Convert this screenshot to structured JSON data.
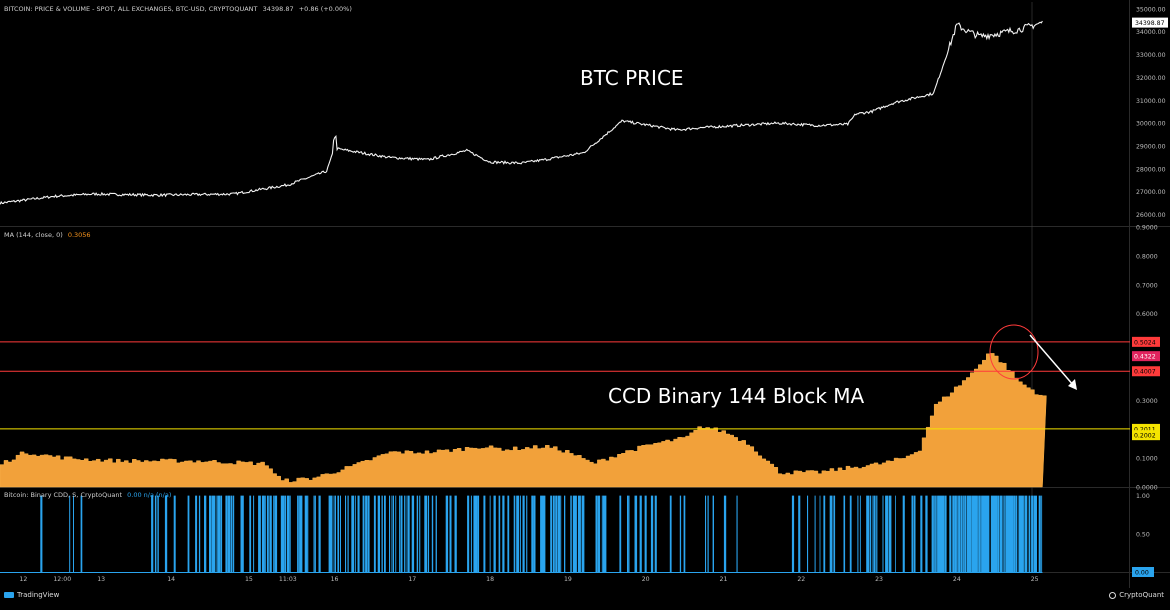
{
  "chart_data": [
    {
      "type": "line",
      "pane": "price",
      "header": "BITCOIN: PRICE & VOLUME - SPOT, ALL EXCHANGES, BTC-USD, CRYPTOQUANT",
      "header_value": "34398.87",
      "header_change": "+0.86 (+0.00%)",
      "annotation": "BTC PRICE",
      "last_value_label": "34398.87",
      "y_ticks": [
        "35000.00",
        "34000.00",
        "33000.00",
        "32000.00",
        "31000.00",
        "30000.00",
        "29000.00",
        "28000.00",
        "27000.00",
        "26000.00"
      ],
      "ylim": [
        25500,
        35300
      ],
      "x": [
        0,
        0.7,
        1.2,
        2.0,
        3.0,
        3.7,
        4.2,
        4.3,
        5.0,
        5.5,
        6.0,
        6.3,
        6.7,
        7.0,
        7.5,
        8.0,
        8.7,
        9.0,
        10.0,
        10.5,
        10.9,
        11.0,
        11.2,
        11.5,
        12.0,
        12.3,
        12.45,
        12.6,
        12.8,
        13.1,
        13.4
      ],
      "values": [
        26500,
        26800,
        26900,
        26850,
        26900,
        27300,
        27900,
        28900,
        28500,
        28400,
        28800,
        28300,
        28250,
        28400,
        28700,
        30100,
        29700,
        29800,
        30000,
        29900,
        29950,
        30400,
        30500,
        30900,
        31300,
        34300,
        34000,
        33800,
        33900,
        34100,
        34400
      ]
    },
    {
      "type": "area",
      "pane": "ma",
      "header": "MA (144, close, 0)",
      "header_value": "0.3056",
      "annotation": "CCD Binary 144 Block MA",
      "y_ticks": [
        "0.9000",
        "0.8000",
        "0.7000",
        "0.6000",
        "0.5000",
        "0.4000",
        "0.3000",
        "0.2000",
        "0.1000",
        "0.0000"
      ],
      "ylim": [
        0,
        0.9
      ],
      "horizontal_lines": [
        {
          "value": 0.5024,
          "label": "0.5024",
          "color": "#ff3b3b"
        },
        {
          "value": 0.4007,
          "label": "0.4007",
          "color": "#ff3b3b"
        },
        {
          "value": 0.2011,
          "label": "0.2011",
          "color": "#f5e400"
        }
      ],
      "extra_labels": [
        {
          "value": 0.4322,
          "label": "0.4322",
          "color": "#e0245e"
        },
        {
          "value": 0.2002,
          "label": "0.2002",
          "color": "#f5e400"
        }
      ],
      "x": [
        0,
        0.3,
        0.8,
        1.5,
        2.5,
        3.4,
        3.6,
        4.0,
        4.5,
        5.0,
        5.5,
        5.9,
        6.1,
        6.5,
        7.0,
        7.3,
        7.6,
        8.0,
        8.4,
        8.8,
        9.0,
        9.3,
        9.6,
        10.0,
        10.5,
        11.0,
        11.3,
        11.6,
        11.8,
        12.0,
        12.3,
        12.5,
        12.7,
        12.9,
        13.1,
        13.4
      ],
      "values": [
        0.08,
        0.12,
        0.1,
        0.09,
        0.09,
        0.08,
        0.02,
        0.03,
        0.07,
        0.12,
        0.12,
        0.13,
        0.14,
        0.13,
        0.14,
        0.12,
        0.08,
        0.12,
        0.15,
        0.17,
        0.21,
        0.19,
        0.15,
        0.05,
        0.05,
        0.07,
        0.08,
        0.1,
        0.13,
        0.28,
        0.35,
        0.4,
        0.47,
        0.42,
        0.36,
        0.31
      ]
    },
    {
      "type": "bar",
      "pane": "binary",
      "header": "Bitcoin: Binary CDD, S, CryptoQuant",
      "header_value": "0.00 n/a (n/a)",
      "y_ticks": [
        "1.00",
        "0.50",
        "0.00"
      ],
      "last_value_label": "0.00",
      "ylim": [
        0,
        1.1
      ],
      "density": [
        0.02,
        0.2,
        0.05,
        0.15,
        0.05,
        0.1,
        0.05,
        0.1,
        0.05,
        0.35,
        0.45,
        0.5,
        0.45,
        0.4,
        0.5,
        0.45,
        0.4,
        0.5,
        0.5,
        0.45,
        0.4,
        0.5,
        0.45,
        0.55,
        0.5,
        0.4,
        0.35,
        0.2,
        0.3,
        0.25,
        0.2,
        0.15,
        0.1,
        0.05,
        0.1,
        0.2,
        0.15,
        0.2,
        0.3,
        0.4,
        0.5,
        0.8,
        0.85,
        0.8,
        0.7,
        0.6
      ]
    }
  ],
  "x_axis": {
    "ticks": [
      {
        "label": "12",
        "x": 0.3
      },
      {
        "label": "12:00",
        "x": 0.8
      },
      {
        "label": "13",
        "x": 1.3
      },
      {
        "label": "14",
        "x": 2.2
      },
      {
        "label": "15",
        "x": 3.2
      },
      {
        "label": "11:03",
        "x": 3.7
      },
      {
        "label": "16",
        "x": 4.3
      },
      {
        "label": "17",
        "x": 5.3
      },
      {
        "label": "18",
        "x": 6.3
      },
      {
        "label": "19",
        "x": 7.3
      },
      {
        "label": "20",
        "x": 8.3
      },
      {
        "label": "21",
        "x": 9.3
      },
      {
        "label": "22",
        "x": 10.3
      },
      {
        "label": "23",
        "x": 11.3
      },
      {
        "label": "24",
        "x": 12.3
      },
      {
        "label": "25",
        "x": 13.3
      }
    ],
    "domain": [
      0,
      14.5
    ]
  },
  "footer": {
    "left": "TradingView",
    "right": "CryptoQuant"
  }
}
